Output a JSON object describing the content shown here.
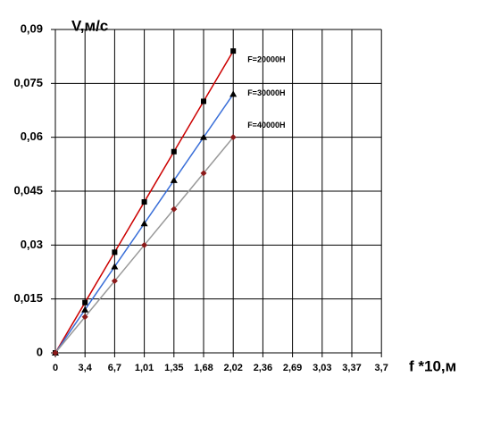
{
  "chart_data": {
    "type": "line",
    "y_label": "V,м/с",
    "x_label": "f *10,м",
    "categories": [
      "0",
      "3,4",
      "6,7",
      "1,01",
      "1,35",
      "1,68",
      "2,02",
      "2,36",
      "2,69",
      "3,03",
      "3,37",
      "3,7"
    ],
    "series": [
      {
        "name": "F=20000H",
        "color": "#cc0000",
        "marker": "square",
        "marker_color": "#000000",
        "values": [
          0,
          0.014,
          0.028,
          0.042,
          0.056,
          0.07,
          0.084,
          null,
          null,
          null,
          null,
          null
        ]
      },
      {
        "name": "F=30000H",
        "color": "#3a6fd8",
        "marker": "triangle",
        "marker_color": "#000000",
        "values": [
          0,
          0.012,
          0.024,
          0.036,
          0.048,
          0.06,
          0.072,
          null,
          null,
          null,
          null,
          null
        ]
      },
      {
        "name": "F=40000H",
        "color": "#999999",
        "marker": "diamond",
        "marker_color": "#8b1a1a",
        "values": [
          0,
          0.01,
          0.02,
          0.03,
          0.04,
          0.05,
          0.06,
          null,
          null,
          null,
          null,
          null
        ]
      }
    ],
    "ylim": [
      0,
      0.09
    ],
    "yticks": [
      0,
      {
        "value": 0.015,
        "label": "0,015"
      },
      {
        "value": 0.03,
        "label": "0,03"
      },
      {
        "value": 0.045,
        "label": "0,045"
      },
      {
        "value": 0.06,
        "label": "0,06"
      },
      {
        "value": 0.075,
        "label": "0,075"
      },
      {
        "value": 0.09,
        "label": "0,09"
      }
    ],
    "grid": true
  }
}
